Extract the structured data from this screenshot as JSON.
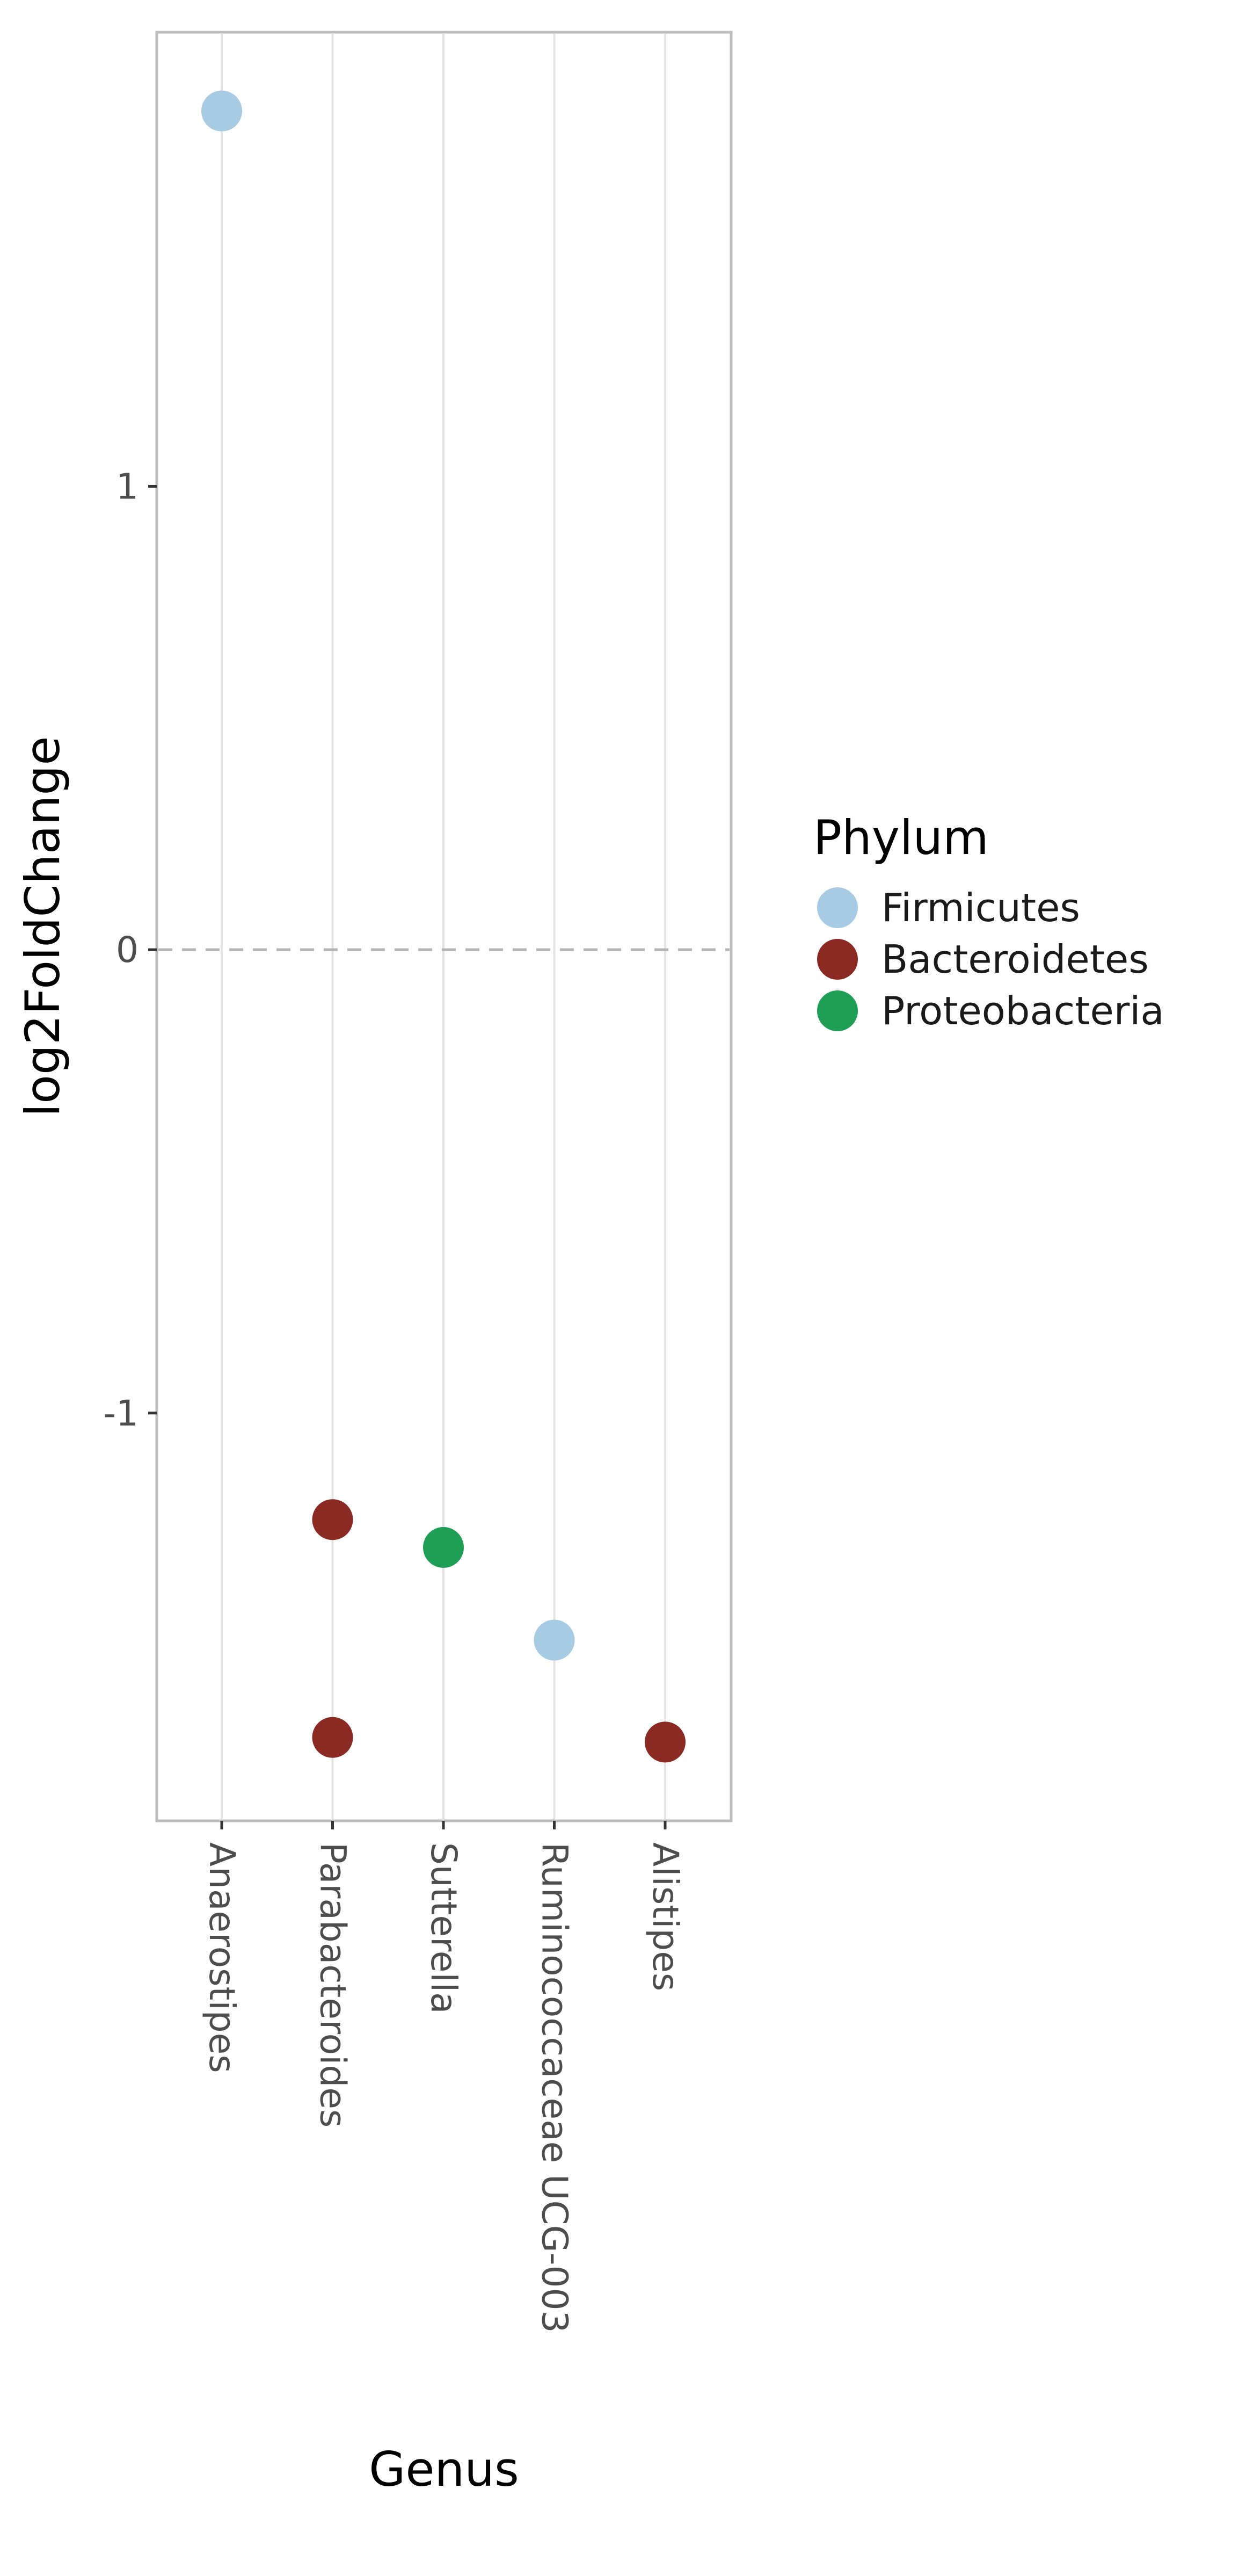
{
  "chart_data": {
    "type": "scatter",
    "xlabel": "Genus",
    "ylabel": "log2FoldChange",
    "categories": [
      "Anaerostipes",
      "Parabacteroides",
      "Sutterella",
      "Ruminococcaceae UCG-003",
      "Alistipes"
    ],
    "yticks": [
      1,
      0,
      -1
    ],
    "ytick_labels": [
      "1",
      "0",
      "-1"
    ],
    "ylim": [
      -1.88,
      1.98
    ],
    "reference_line": {
      "y": 0,
      "style": "dashed"
    },
    "grid": {
      "vertical": true,
      "horizontal": false
    },
    "legend": {
      "title": "Phylum",
      "placement": "right",
      "entries": [
        {
          "name": "Firmicutes",
          "color": "#a6cbe2"
        },
        {
          "name": "Bacteroidetes",
          "color": "#8b2a23"
        },
        {
          "name": "Proteobacteria",
          "color": "#1f9f55"
        }
      ]
    },
    "series": [
      {
        "name": "Firmicutes",
        "color": "#a6cbe2",
        "points": [
          {
            "x": "Anaerostipes",
            "y": 1.81
          },
          {
            "x": "Ruminococcaceae UCG-003",
            "y": -1.49
          }
        ]
      },
      {
        "name": "Bacteroidetes",
        "color": "#8b2a23",
        "points": [
          {
            "x": "Parabacteroides",
            "y": -1.23
          },
          {
            "x": "Parabacteroides",
            "y": -1.7
          },
          {
            "x": "Alistipes",
            "y": -1.71
          }
        ]
      },
      {
        "name": "Proteobacteria",
        "color": "#1f9f55",
        "points": [
          {
            "x": "Sutterella",
            "y": -1.29
          }
        ]
      }
    ]
  }
}
